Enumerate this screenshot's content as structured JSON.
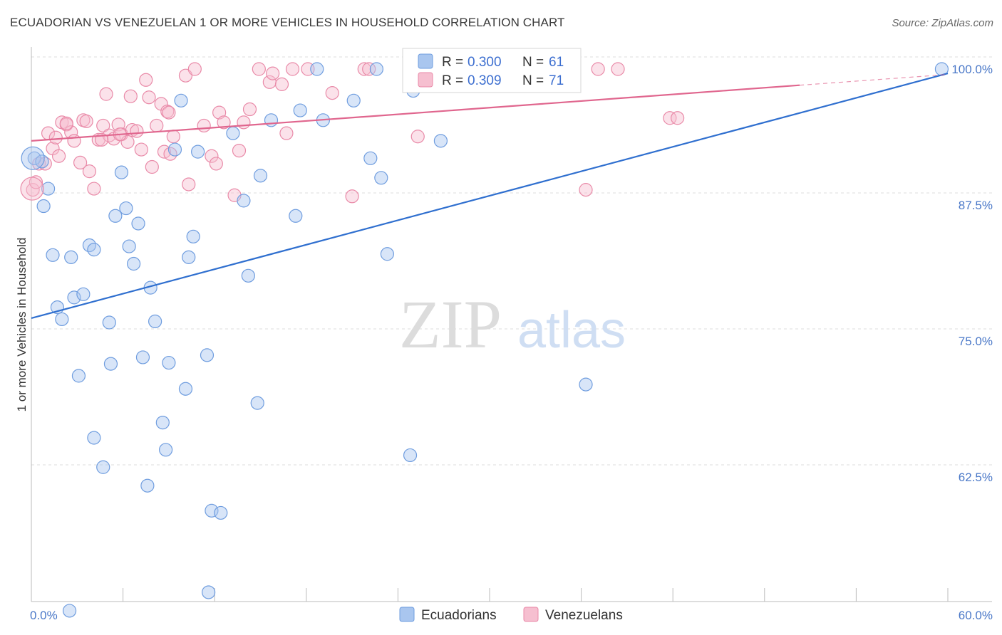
{
  "title": "ECUADORIAN VS VENEZUELAN 1 OR MORE VEHICLES IN HOUSEHOLD CORRELATION CHART",
  "source": "Source: ZipAtlas.com",
  "watermark": {
    "zip": "ZIP",
    "atlas": "atlas"
  },
  "colors": {
    "blue_fill": "#a9c6ef",
    "blue_stroke": "#6f9ddf",
    "blue_line": "#2f6fcf",
    "pink_fill": "#f6bfd0",
    "pink_stroke": "#e98aa8",
    "pink_line": "#e0668e",
    "grid": "#dcdcdc",
    "tick_text": "#4a78c8"
  },
  "legend": {
    "r_label": "R =",
    "n_label": "N =",
    "rows": [
      {
        "r": "0.300",
        "n": "61"
      },
      {
        "r": "0.309",
        "n": "71"
      }
    ]
  },
  "chart_data": {
    "type": "scatter",
    "title": "ECUADORIAN VS VENEZUELAN 1 OR MORE VEHICLES IN HOUSEHOLD CORRELATION CHART",
    "xlabel": "",
    "ylabel": "1 or more Vehicles in Household",
    "xlim": [
      0,
      60
    ],
    "ylim": [
      50,
      102
    ],
    "x_tick_labels": [
      {
        "v": 0,
        "label": "0.0%"
      },
      {
        "v": 60,
        "label": "60.0%"
      }
    ],
    "y_ticks": [
      {
        "v": 100,
        "label": "100.0%"
      },
      {
        "v": 87.5,
        "label": "87.5%"
      },
      {
        "v": 75,
        "label": "75.0%"
      },
      {
        "v": 62.5,
        "label": "62.5%"
      }
    ],
    "series": [
      {
        "name": "Ecuadorians",
        "color_key": "blue",
        "trend": {
          "x0": 0,
          "y0": 77.1,
          "x1": 60,
          "y1": 99.6,
          "solid_to": 60
        },
        "points": [
          [
            0.2,
            91.8
          ],
          [
            0.7,
            91.5
          ],
          [
            0.8,
            87.4
          ],
          [
            1.1,
            89.0
          ],
          [
            1.4,
            82.9
          ],
          [
            1.7,
            78.1
          ],
          [
            2.0,
            77.0
          ],
          [
            2.6,
            82.7
          ],
          [
            2.8,
            79.0
          ],
          [
            3.1,
            71.8
          ],
          [
            3.4,
            79.3
          ],
          [
            3.8,
            83.8
          ],
          [
            4.1,
            66.1
          ],
          [
            4.1,
            83.4
          ],
          [
            4.7,
            63.4
          ],
          [
            5.1,
            76.7
          ],
          [
            5.2,
            72.9
          ],
          [
            5.5,
            86.5
          ],
          [
            5.9,
            90.5
          ],
          [
            6.2,
            87.2
          ],
          [
            6.4,
            83.7
          ],
          [
            6.7,
            82.1
          ],
          [
            7.0,
            85.8
          ],
          [
            7.3,
            73.5
          ],
          [
            7.6,
            61.7
          ],
          [
            7.8,
            79.9
          ],
          [
            8.1,
            76.8
          ],
          [
            8.6,
            67.5
          ],
          [
            8.8,
            65.0
          ],
          [
            9.0,
            73.0
          ],
          [
            9.4,
            92.6
          ],
          [
            9.8,
            97.1
          ],
          [
            10.1,
            70.6
          ],
          [
            10.3,
            82.7
          ],
          [
            10.6,
            84.6
          ],
          [
            10.9,
            92.4
          ],
          [
            11.5,
            73.7
          ],
          [
            11.8,
            59.4
          ],
          [
            11.6,
            51.9
          ],
          [
            12.4,
            59.2
          ],
          [
            13.2,
            94.1
          ],
          [
            13.9,
            87.9
          ],
          [
            14.2,
            81.0
          ],
          [
            14.8,
            69.3
          ],
          [
            15.0,
            90.2
          ],
          [
            15.7,
            95.3
          ],
          [
            17.3,
            86.5
          ],
          [
            17.6,
            96.2
          ],
          [
            18.7,
            100.0
          ],
          [
            19.1,
            95.3
          ],
          [
            21.1,
            97.1
          ],
          [
            22.2,
            91.8
          ],
          [
            22.6,
            100.0
          ],
          [
            22.9,
            90.0
          ],
          [
            23.3,
            83.0
          ],
          [
            24.8,
            64.5
          ],
          [
            25.0,
            98.0
          ],
          [
            26.8,
            93.4
          ],
          [
            36.3,
            71.0
          ],
          [
            59.6,
            100.0
          ],
          [
            2.5,
            50.2
          ]
        ]
      },
      {
        "name": "Venezuelans",
        "color_key": "pink",
        "trend": {
          "x0": 0,
          "y0": 93.4,
          "x1": 60,
          "y1": 99.5,
          "solid_to": 50.3
        },
        "points": [
          [
            0.1,
            88.9
          ],
          [
            0.3,
            89.6
          ],
          [
            0.5,
            91.3
          ],
          [
            0.9,
            91.3
          ],
          [
            1.1,
            94.1
          ],
          [
            1.4,
            92.7
          ],
          [
            1.6,
            93.7
          ],
          [
            1.8,
            92.0
          ],
          [
            2.0,
            95.1
          ],
          [
            2.3,
            94.9
          ],
          [
            2.6,
            94.2
          ],
          [
            2.8,
            93.4
          ],
          [
            3.2,
            91.4
          ],
          [
            3.4,
            95.3
          ],
          [
            3.6,
            95.2
          ],
          [
            3.8,
            90.6
          ],
          [
            4.1,
            89.0
          ],
          [
            4.4,
            93.5
          ],
          [
            4.7,
            94.8
          ],
          [
            4.9,
            97.7
          ],
          [
            5.1,
            93.9
          ],
          [
            5.4,
            93.6
          ],
          [
            5.7,
            94.9
          ],
          [
            5.9,
            94.0
          ],
          [
            6.3,
            93.3
          ],
          [
            6.5,
            97.5
          ],
          [
            6.6,
            94.4
          ],
          [
            6.9,
            94.3
          ],
          [
            7.2,
            92.6
          ],
          [
            7.5,
            99.0
          ],
          [
            7.7,
            97.4
          ],
          [
            7.9,
            91.0
          ],
          [
            8.2,
            94.8
          ],
          [
            8.5,
            96.8
          ],
          [
            8.7,
            92.4
          ],
          [
            8.9,
            96.1
          ],
          [
            9.1,
            92.2
          ],
          [
            9.3,
            93.8
          ],
          [
            10.1,
            99.4
          ],
          [
            10.3,
            89.4
          ],
          [
            10.7,
            100.0
          ],
          [
            11.3,
            94.8
          ],
          [
            11.8,
            92.0
          ],
          [
            12.1,
            91.3
          ],
          [
            12.3,
            96.0
          ],
          [
            12.6,
            95.1
          ],
          [
            13.3,
            88.4
          ],
          [
            13.6,
            92.5
          ],
          [
            13.9,
            95.1
          ],
          [
            14.3,
            96.3
          ],
          [
            14.9,
            100.0
          ],
          [
            15.6,
            98.8
          ],
          [
            15.8,
            99.6
          ],
          [
            16.4,
            98.6
          ],
          [
            16.7,
            94.1
          ],
          [
            17.1,
            100.0
          ],
          [
            18.1,
            100.0
          ],
          [
            19.7,
            97.8
          ],
          [
            21.0,
            88.3
          ],
          [
            21.8,
            100.0
          ],
          [
            22.1,
            100.0
          ],
          [
            25.3,
            93.8
          ],
          [
            36.3,
            88.9
          ],
          [
            37.1,
            100.0
          ],
          [
            38.4,
            100.0
          ],
          [
            41.8,
            95.5
          ],
          [
            42.3,
            95.5
          ],
          [
            9.0,
            96.0
          ],
          [
            5.8,
            94.0
          ],
          [
            2.3,
            95.0
          ],
          [
            4.6,
            93.5
          ]
        ]
      }
    ],
    "legend_position": "top-center"
  }
}
